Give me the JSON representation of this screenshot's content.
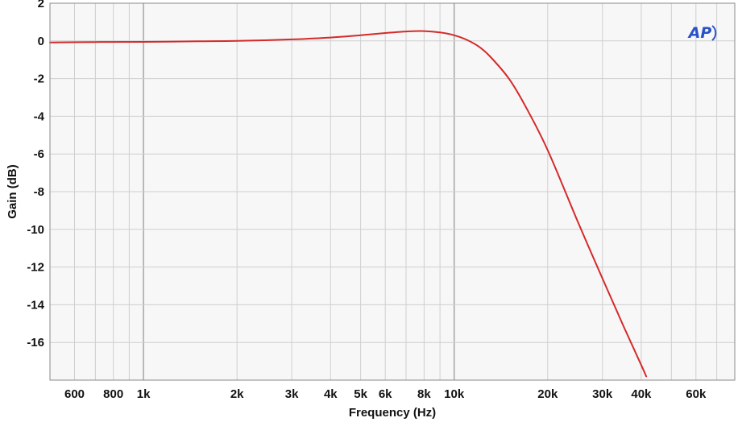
{
  "chart_data": {
    "type": "line",
    "xlabel": "Frequency (Hz)",
    "ylabel": "Gain (dB)",
    "x_scale": "log",
    "xlim": [
      500,
      80000
    ],
    "ylim": [
      -18,
      2
    ],
    "grid": true,
    "x_major_ticks": [
      1000,
      10000
    ],
    "x_tick_values": [
      600,
      800,
      1000,
      2000,
      3000,
      4000,
      5000,
      6000,
      8000,
      10000,
      20000,
      30000,
      40000,
      60000
    ],
    "x_tick_labels": [
      "600",
      "800",
      "1k",
      "2k",
      "3k",
      "4k",
      "5k",
      "6k",
      "8k",
      "10k",
      "20k",
      "30k",
      "40k",
      "60k"
    ],
    "y_tick_values": [
      2,
      0,
      -2,
      -4,
      -6,
      -8,
      -10,
      -12,
      -14,
      -16
    ],
    "y_tick_labels": [
      "2",
      "0",
      "-2",
      "-4",
      "-6",
      "-8",
      "-10",
      "-12",
      "-14",
      "-16"
    ],
    "series": [
      {
        "color": "#d42a2a",
        "points": [
          [
            500,
            -0.08
          ],
          [
            700,
            -0.06
          ],
          [
            1000,
            -0.05
          ],
          [
            1500,
            -0.02
          ],
          [
            2000,
            0.0
          ],
          [
            3000,
            0.08
          ],
          [
            4000,
            0.18
          ],
          [
            5000,
            0.3
          ],
          [
            6000,
            0.42
          ],
          [
            7000,
            0.5
          ],
          [
            8000,
            0.52
          ],
          [
            9000,
            0.45
          ],
          [
            10000,
            0.3
          ],
          [
            11000,
            0.05
          ],
          [
            12000,
            -0.3
          ],
          [
            13000,
            -0.8
          ],
          [
            15000,
            -2.0
          ],
          [
            17000,
            -3.5
          ],
          [
            20000,
            -5.8
          ],
          [
            25000,
            -9.6
          ],
          [
            30000,
            -12.6
          ],
          [
            35000,
            -15.1
          ],
          [
            40000,
            -17.2
          ],
          [
            41500,
            -17.8
          ]
        ]
      }
    ]
  },
  "logo": {
    "text": "AP",
    "color": "#2a52c8"
  }
}
